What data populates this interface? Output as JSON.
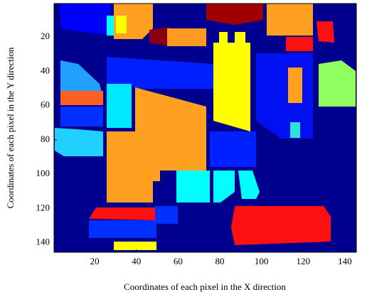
{
  "chart_data": {
    "type": "image",
    "xlabel": "Coordinates of each pixel in the X direction",
    "ylabel": "Coordinates of each pixel in the Y  direction",
    "xlim": [
      0.5,
      145.5
    ],
    "ylim": [
      0.5,
      145.5
    ],
    "y_inverted": true,
    "xticks": [
      20,
      40,
      60,
      80,
      100,
      120,
      140
    ],
    "yticks": [
      20,
      40,
      60,
      80,
      100,
      120,
      140
    ]
  }
}
